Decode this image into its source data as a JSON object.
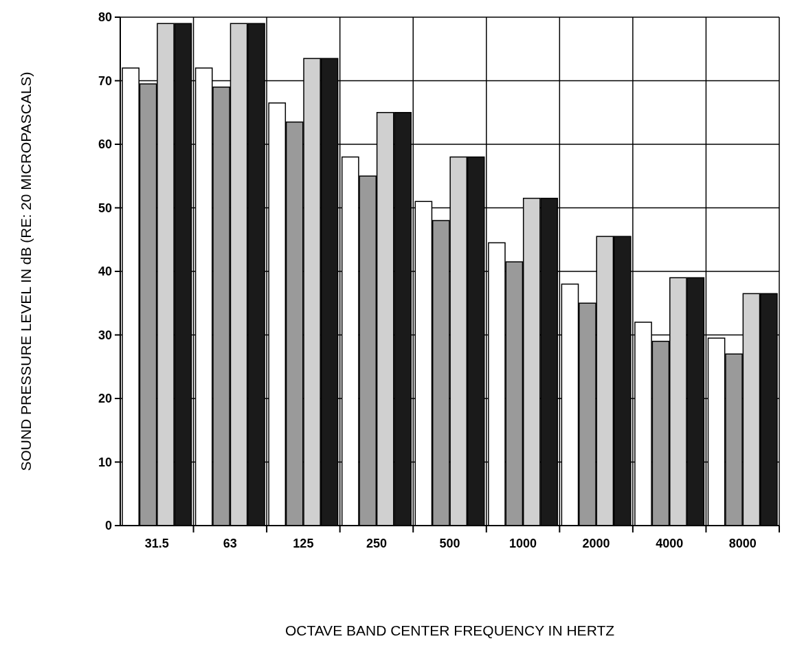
{
  "chart_data": {
    "type": "bar",
    "xlabel": "OCTAVE BAND CENTER FREQUENCY IN HERTZ",
    "ylabel": "SOUND PRESSURE LEVEL IN dB (RE: 20 MICROPASCALS)",
    "categories": [
      "31.5",
      "63",
      "125",
      "250",
      "500",
      "1000",
      "2000",
      "4000",
      "8000"
    ],
    "series": [
      {
        "color": "#ffffff",
        "values": [
          72,
          72,
          66.5,
          58,
          51,
          44.5,
          38,
          32,
          29.5
        ]
      },
      {
        "color": "#9a9a9a",
        "values": [
          69.5,
          69,
          63.5,
          55,
          48,
          41.5,
          35,
          29,
          27
        ]
      },
      {
        "color": "#d0d0d0",
        "values": [
          79,
          79,
          73.5,
          65,
          58,
          51.5,
          45.5,
          39,
          36.5
        ]
      },
      {
        "color": "#1a1a1a",
        "values": [
          79,
          79,
          73.5,
          65,
          58,
          51.5,
          45.5,
          39,
          36.5
        ]
      }
    ],
    "ylim": [
      0,
      80
    ],
    "yticks": [
      0,
      10,
      20,
      30,
      40,
      50,
      60,
      70,
      80
    ],
    "grid": true
  }
}
